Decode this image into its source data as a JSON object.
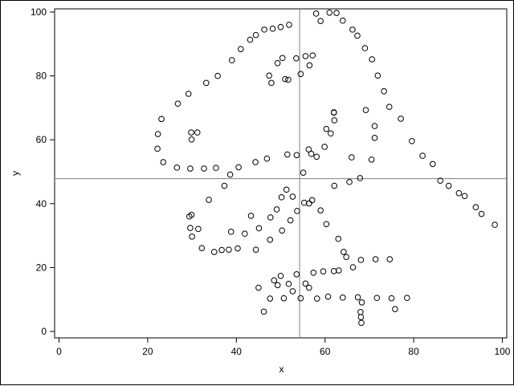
{
  "chart_data": {
    "type": "scatter",
    "title": "",
    "xlabel": "x",
    "ylabel": "y",
    "xlim": [
      -1,
      101
    ],
    "ylim": [
      -2,
      101
    ],
    "xticks": [
      "0",
      "20",
      "40",
      "60",
      "80",
      "100"
    ],
    "yticks": [
      "0",
      "20",
      "40",
      "60",
      "80",
      "100"
    ],
    "grid": false,
    "legend": "none",
    "reference_lines": {
      "x_mean": 54.27,
      "y_mean": 47.83
    },
    "colors": {
      "marker": "#000000",
      "reference_line": "#7f7f7f",
      "axis": "#000000"
    },
    "series": [
      {
        "marker": "open-circle",
        "points": [
          [
            22.3,
            61.8
          ],
          [
            22.2,
            57.2
          ],
          [
            23.1,
            66.5
          ],
          [
            23.5,
            53.0
          ],
          [
            26.6,
            51.3
          ],
          [
            26.8,
            71.3
          ],
          [
            29.2,
            74.4
          ],
          [
            29.6,
            51.0
          ],
          [
            29.8,
            62.3
          ],
          [
            29.9,
            60.1
          ],
          [
            31.2,
            62.3
          ],
          [
            32.7,
            51.0
          ],
          [
            33.2,
            77.8
          ],
          [
            35.4,
            51.2
          ],
          [
            35.8,
            80.0
          ],
          [
            37.3,
            45.6
          ],
          [
            38.6,
            49.1
          ],
          [
            39.0,
            84.9
          ],
          [
            40.5,
            51.4
          ],
          [
            41.0,
            88.4
          ],
          [
            43.1,
            91.3
          ],
          [
            44.3,
            53.0
          ],
          [
            44.4,
            92.8
          ],
          [
            46.3,
            94.5
          ],
          [
            46.9,
            54.1
          ],
          [
            48.2,
            94.8
          ],
          [
            50.0,
            95.3
          ],
          [
            51.5,
            55.4
          ],
          [
            51.9,
            96.0
          ],
          [
            53.6,
            55.2
          ],
          [
            56.3,
            57.0
          ],
          [
            58.0,
            99.5
          ],
          [
            59.0,
            97.2
          ],
          [
            60.3,
            63.4
          ],
          [
            61.0,
            99.8
          ],
          [
            62.6,
            99.7
          ],
          [
            64.0,
            97.3
          ],
          [
            66.0,
            54.5
          ],
          [
            66.2,
            94.5
          ],
          [
            67.3,
            92.6
          ],
          [
            69.0,
            88.7
          ],
          [
            70.6,
            85.2
          ],
          [
            71.9,
            80.1
          ],
          [
            73.3,
            75.2
          ],
          [
            74.5,
            70.3
          ],
          [
            77.1,
            66.6
          ],
          [
            79.6,
            59.6
          ],
          [
            82.0,
            55.0
          ],
          [
            84.3,
            52.4
          ],
          [
            86.0,
            47.2
          ],
          [
            87.9,
            45.6
          ],
          [
            90.2,
            43.3
          ],
          [
            91.5,
            42.4
          ],
          [
            94.0,
            38.9
          ],
          [
            95.3,
            36.8
          ],
          [
            98.3,
            33.4
          ],
          [
            47.4,
            80.1
          ],
          [
            47.9,
            77.8
          ],
          [
            49.3,
            84.0
          ],
          [
            50.4,
            85.6
          ],
          [
            51.0,
            79.0
          ],
          [
            51.7,
            78.8
          ],
          [
            53.5,
            85.5
          ],
          [
            54.5,
            80.6
          ],
          [
            55.6,
            86.2
          ],
          [
            56.5,
            83.3
          ],
          [
            57.2,
            86.4
          ],
          [
            62.0,
            68.6
          ],
          [
            62.1,
            66.1
          ],
          [
            69.2,
            69.3
          ],
          [
            71.2,
            64.3
          ],
          [
            71.2,
            60.6
          ],
          [
            55.1,
            49.7
          ],
          [
            56.9,
            55.6
          ],
          [
            58.1,
            54.7
          ],
          [
            59.9,
            57.8
          ],
          [
            61.3,
            62.0
          ],
          [
            62.0,
            68.5
          ],
          [
            65.5,
            46.8
          ],
          [
            67.9,
            48.0
          ],
          [
            70.5,
            53.8
          ],
          [
            62.1,
            45.6
          ],
          [
            56.4,
            40.1
          ],
          [
            55.3,
            40.3
          ],
          [
            52.7,
            42.2
          ],
          [
            51.3,
            44.4
          ],
          [
            50.2,
            42.0
          ],
          [
            49.1,
            38.2
          ],
          [
            47.7,
            35.7
          ],
          [
            45.1,
            32.3
          ],
          [
            43.3,
            36.2
          ],
          [
            41.9,
            30.6
          ],
          [
            40.3,
            26.0
          ],
          [
            38.3,
            25.6
          ],
          [
            36.7,
            25.5
          ],
          [
            35.0,
            24.9
          ],
          [
            33.8,
            41.2
          ],
          [
            32.2,
            26.1
          ],
          [
            30.0,
            29.7
          ],
          [
            29.6,
            32.4
          ],
          [
            29.4,
            36.0
          ],
          [
            29.9,
            36.5
          ],
          [
            31.4,
            32.1
          ],
          [
            38.8,
            31.2
          ],
          [
            44.4,
            25.6
          ],
          [
            47.6,
            28.7
          ],
          [
            50.3,
            31.6
          ],
          [
            52.2,
            34.8
          ],
          [
            53.7,
            37.7
          ],
          [
            57.1,
            41.1
          ],
          [
            59.0,
            37.9
          ],
          [
            60.3,
            33.6
          ],
          [
            63.0,
            29.0
          ],
          [
            64.2,
            24.9
          ],
          [
            64.8,
            23.3
          ],
          [
            66.3,
            20.1
          ],
          [
            68.1,
            22.4
          ],
          [
            71.4,
            22.6
          ],
          [
            74.6,
            22.6
          ],
          [
            75.8,
            7.0
          ],
          [
            45.0,
            13.7
          ],
          [
            46.2,
            6.2
          ],
          [
            47.6,
            10.3
          ],
          [
            48.5,
            16.0
          ],
          [
            49.3,
            14.5
          ],
          [
            50.0,
            17.4
          ],
          [
            50.7,
            10.4
          ],
          [
            51.8,
            14.9
          ],
          [
            52.7,
            12.6
          ],
          [
            53.6,
            17.9
          ],
          [
            54.5,
            10.4
          ],
          [
            55.6,
            15.0
          ],
          [
            56.4,
            13.7
          ],
          [
            57.4,
            18.4
          ],
          [
            58.2,
            10.3
          ],
          [
            59.6,
            18.8
          ],
          [
            60.7,
            10.9
          ],
          [
            62.0,
            18.9
          ],
          [
            63.1,
            19.1
          ],
          [
            64.0,
            10.6
          ],
          [
            67.4,
            10.7
          ],
          [
            68.3,
            9.1
          ],
          [
            68.0,
            6.1
          ],
          [
            68.1,
            4.5
          ],
          [
            68.2,
            2.7
          ],
          [
            71.7,
            10.5
          ],
          [
            75.0,
            10.4
          ],
          [
            78.5,
            10.5
          ]
        ]
      }
    ]
  }
}
